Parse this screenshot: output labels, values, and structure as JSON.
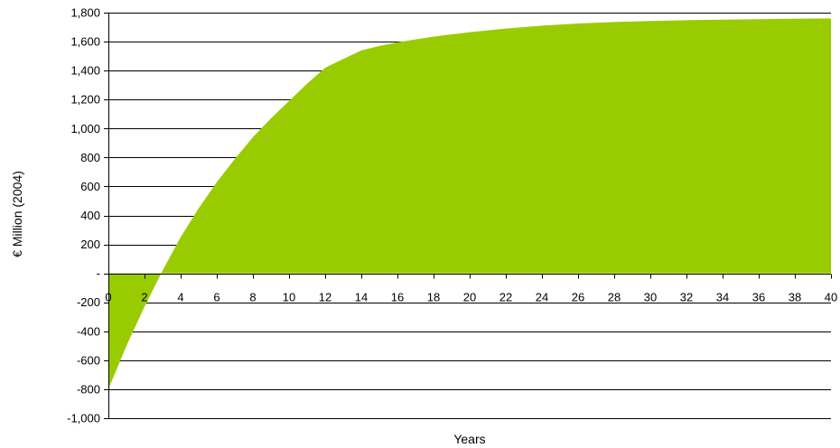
{
  "chart_data": {
    "type": "area",
    "title": "",
    "xlabel": "Years",
    "ylabel": "€ Million (2004)",
    "xlim": [
      0,
      40
    ],
    "ylim": [
      -1000,
      1800
    ],
    "grid": true,
    "legend": "none",
    "fill_color": "#99cc00",
    "x_ticks": [
      0,
      2,
      4,
      6,
      8,
      10,
      12,
      14,
      16,
      18,
      20,
      22,
      24,
      26,
      28,
      30,
      32,
      34,
      36,
      38,
      40
    ],
    "x_tick_labels": [
      "0",
      "2",
      "4",
      "6",
      "8",
      "10",
      "12",
      "14",
      "16",
      "18",
      "20",
      "22",
      "24",
      "26",
      "28",
      "30",
      "32",
      "34",
      "36",
      "38",
      "40"
    ],
    "y_ticks": [
      1800,
      1600,
      1400,
      1200,
      1000,
      800,
      600,
      400,
      200,
      0,
      -200,
      -400,
      -600,
      -800,
      -1000
    ],
    "y_tick_labels": [
      "1,800",
      "1,600",
      "1,400",
      "1,200",
      "1,000",
      "800",
      "600",
      "400",
      "200",
      "-",
      "-200",
      "-400",
      "-600",
      "-800",
      "-1,000"
    ],
    "x": [
      0,
      1,
      2,
      3,
      4,
      5,
      6,
      7,
      8,
      9,
      10,
      11,
      12,
      13,
      14,
      15,
      16,
      17,
      18,
      19,
      20,
      22,
      24,
      26,
      28,
      30,
      32,
      34,
      36,
      38,
      40
    ],
    "values": [
      -800,
      -500,
      -230,
      20,
      250,
      450,
      630,
      790,
      940,
      1070,
      1190,
      1310,
      1420,
      1480,
      1540,
      1570,
      1595,
      1615,
      1635,
      1650,
      1665,
      1690,
      1710,
      1725,
      1735,
      1742,
      1748,
      1752,
      1755,
      1758,
      1760
    ]
  }
}
